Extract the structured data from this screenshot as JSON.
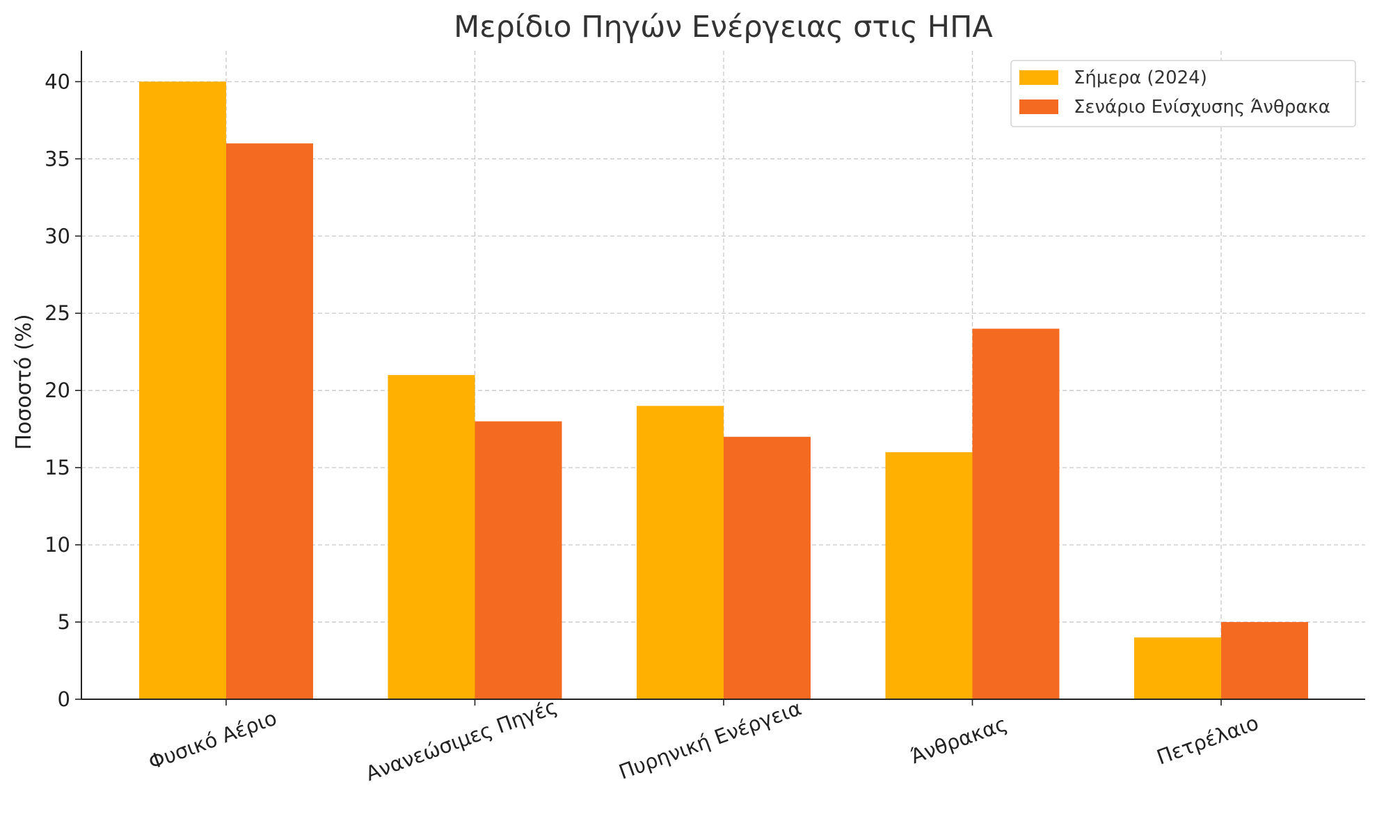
{
  "chart_data": {
    "type": "bar",
    "title": "Μερίδιο Πηγών Ενέργειας στις ΗΠΑ",
    "xlabel": "",
    "ylabel": "Ποσοστό (%)",
    "categories": [
      "Φυσικό Αέριο",
      "Ανανεώσιμες Πηγές",
      "Πυρηνική Ενέργεια",
      "Άνθρακας",
      "Πετρέλαιο"
    ],
    "series": [
      {
        "name": "Σήμερα (2024)",
        "color": "#FFB000",
        "values": [
          40,
          21,
          19,
          16,
          4
        ]
      },
      {
        "name": "Σενάριο Ενίσχυσης Άνθρακα",
        "color": "#F46A21",
        "values": [
          36,
          18,
          17,
          24,
          5
        ]
      }
    ],
    "ylim": [
      0,
      42
    ],
    "yticks": [
      0,
      5,
      10,
      15,
      20,
      25,
      30,
      35,
      40
    ],
    "grid": true,
    "legend_position": "top-right"
  }
}
